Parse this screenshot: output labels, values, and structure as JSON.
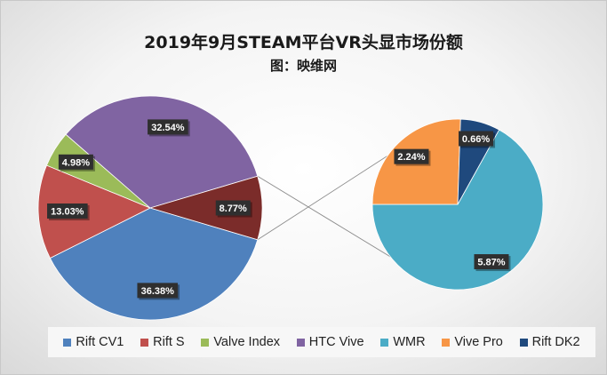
{
  "title": "2019年9月STEAM平台VR头显市场份额",
  "subtitle": "图：映维网",
  "chart_data": {
    "type": "pie",
    "subtype": "pie-of-pie",
    "title": "2019年9月STEAM平台VR头显市场份额",
    "subtitle": "图：映维网",
    "legend_position": "bottom",
    "main_pie": [
      {
        "label": "Rift CV1",
        "value": 36.38,
        "display": "36.38%",
        "color": "#4f81bd"
      },
      {
        "label": "Rift S",
        "value": 13.03,
        "display": "13.03%",
        "color": "#c0504d"
      },
      {
        "label": "Valve Index",
        "value": 4.98,
        "display": "4.98%",
        "color": "#9bbb59"
      },
      {
        "label": "HTC Vive",
        "value": 32.54,
        "display": "32.54%",
        "color": "#8064a2"
      },
      {
        "label": "",
        "value": 8.77,
        "display": "8.77%",
        "color": "#7b2c2a"
      }
    ],
    "secondary_pie": [
      {
        "label": "WMR",
        "value": 5.87,
        "display": "5.87%",
        "color": "#4bacc6"
      },
      {
        "label": "Vive Pro",
        "value": 2.24,
        "display": "2.24%",
        "color": "#f79646"
      },
      {
        "label": "Rift DK2",
        "value": 0.66,
        "display": "0.66%",
        "color": "#1f497d"
      }
    ],
    "legend": [
      {
        "label": "Rift CV1",
        "color": "#4f81bd"
      },
      {
        "label": "Rift S",
        "color": "#c0504d"
      },
      {
        "label": "Valve Index",
        "color": "#9bbb59"
      },
      {
        "label": "HTC Vive",
        "color": "#8064a2"
      },
      {
        "label": "WMR",
        "color": "#4bacc6"
      },
      {
        "label": "Vive Pro",
        "color": "#f79646"
      },
      {
        "label": "Rift DK2",
        "color": "#1f497d"
      }
    ]
  }
}
